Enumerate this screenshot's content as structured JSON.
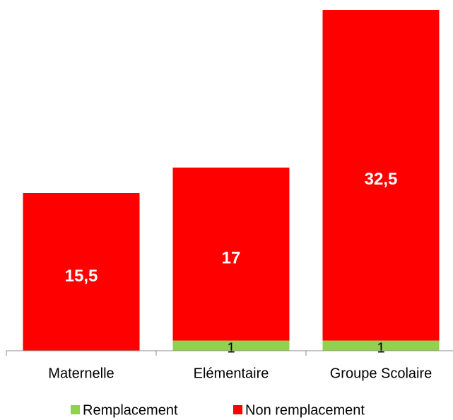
{
  "chart_data": {
    "type": "stacked_bar",
    "categories": [
      "Maternelle",
      "Elémentaire",
      "Groupe Scolaire"
    ],
    "series": [
      {
        "name": "Remplacement",
        "color": "#92d050",
        "values": [
          null,
          1,
          1
        ]
      },
      {
        "name": "Non remplacement",
        "color": "#ff0000",
        "values": [
          15.5,
          17,
          32.5
        ],
        "value_labels": [
          "15,5",
          "17",
          "32,5"
        ]
      }
    ],
    "legend": "bottom"
  }
}
